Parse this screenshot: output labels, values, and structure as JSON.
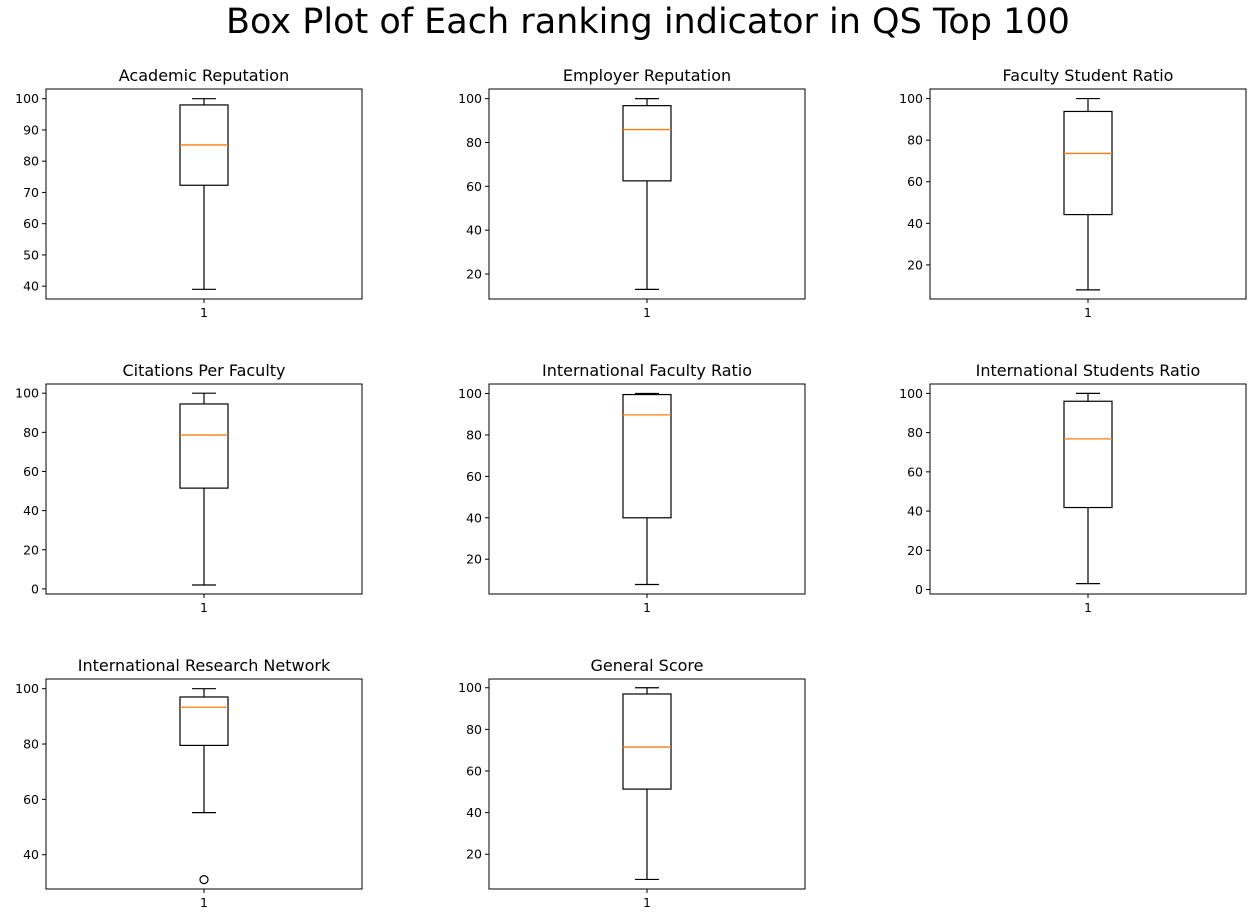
{
  "title": "Box Plot of Each ranking indicator in QS Top 100",
  "colors": {
    "box": "#000000",
    "median": "#ff7f0e",
    "background": "#ffffff"
  },
  "chart_data": [
    {
      "type": "box",
      "title": "Academic Reputation",
      "xticklabels": [
        "1"
      ],
      "ylim": [
        35.9,
        103.1
      ],
      "yticks": [
        40,
        50,
        60,
        70,
        80,
        90,
        100
      ],
      "whisker_low": 39,
      "q1": 72.3,
      "median": 85.2,
      "q3": 98.0,
      "whisker_high": 100,
      "outliers": []
    },
    {
      "type": "box",
      "title": "Employer Reputation",
      "xticklabels": [
        "1"
      ],
      "ylim": [
        8.6,
        104.4
      ],
      "yticks": [
        20,
        40,
        60,
        80,
        100
      ],
      "whisker_low": 13,
      "q1": 62.5,
      "median": 85.9,
      "q3": 96.8,
      "whisker_high": 100,
      "outliers": []
    },
    {
      "type": "box",
      "title": "Faculty Student Ratio",
      "xticklabels": [
        "1"
      ],
      "ylim": [
        3.6,
        104.6
      ],
      "yticks": [
        20,
        40,
        60,
        80,
        100
      ],
      "whisker_low": 8,
      "q1": 44.2,
      "median": 73.6,
      "q3": 93.8,
      "whisker_high": 100,
      "outliers": []
    },
    {
      "type": "box",
      "title": "Citations Per Faculty",
      "xticklabels": [
        "1"
      ],
      "ylim": [
        -2.6,
        104.7
      ],
      "yticks": [
        0,
        20,
        40,
        60,
        80,
        100
      ],
      "whisker_low": 2,
      "q1": 51.5,
      "median": 78.6,
      "q3": 94.5,
      "whisker_high": 100,
      "outliers": []
    },
    {
      "type": "box",
      "title": "International Faculty Ratio",
      "xticklabels": [
        "1"
      ],
      "ylim": [
        3.2,
        104.6
      ],
      "yticks": [
        20,
        40,
        60,
        80,
        100
      ],
      "whisker_low": 7.8,
      "q1": 40,
      "median": 89.7,
      "q3": 99.5,
      "whisker_high": 100,
      "outliers": []
    },
    {
      "type": "box",
      "title": "International Students Ratio",
      "xticklabels": [
        "1"
      ],
      "ylim": [
        -2.3,
        104.8
      ],
      "yticks": [
        0,
        20,
        40,
        60,
        80,
        100
      ],
      "whisker_low": 3,
      "q1": 41.8,
      "median": 76.8,
      "q3": 96.0,
      "whisker_high": 100,
      "outliers": []
    },
    {
      "type": "box",
      "title": "International Research Network",
      "xticklabels": [
        "1"
      ],
      "ylim": [
        27.6,
        103.5
      ],
      "yticks": [
        40,
        60,
        80,
        100
      ],
      "whisker_low": 55.2,
      "q1": 79.5,
      "median": 93.3,
      "q3": 97.0,
      "whisker_high": 100,
      "outliers": [
        31
      ]
    },
    {
      "type": "box",
      "title": "General Score",
      "xticklabels": [
        "1"
      ],
      "ylim": [
        3.3,
        104.2
      ],
      "yticks": [
        20,
        40,
        60,
        80,
        100
      ],
      "whisker_low": 7.9,
      "q1": 51.3,
      "median": 71.5,
      "q3": 97.0,
      "whisker_high": 100,
      "outliers": []
    }
  ]
}
